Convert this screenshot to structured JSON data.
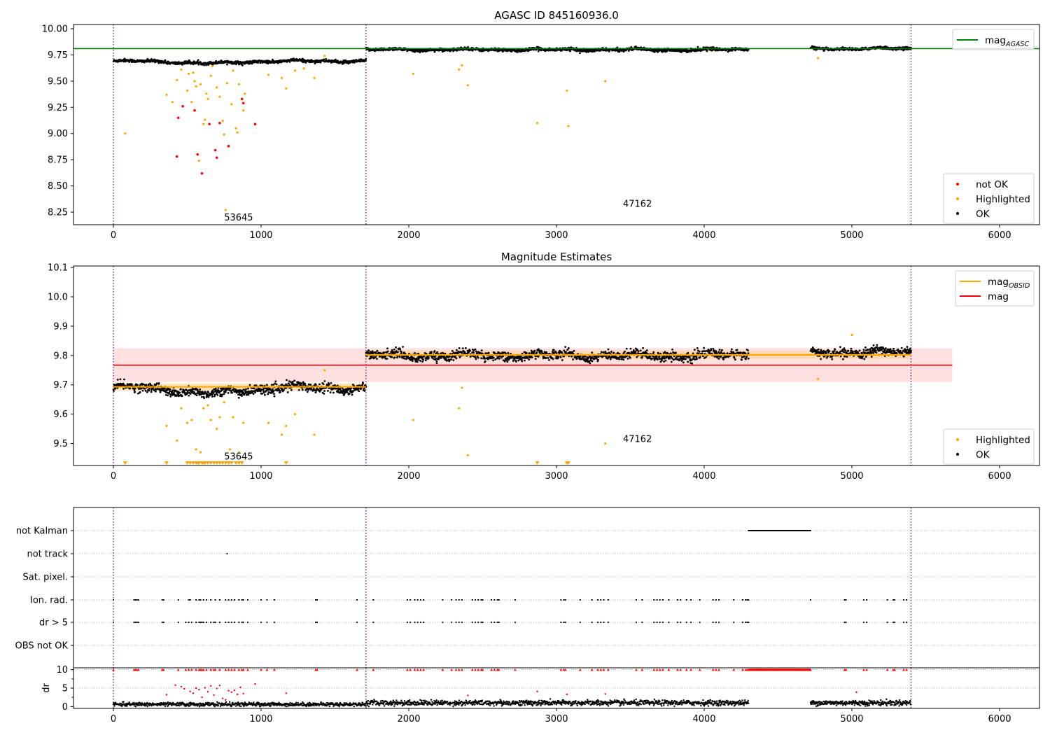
{
  "figure": {
    "title": "AGASC ID 845160936.0"
  },
  "chart_data": [
    {
      "id": "agasc",
      "type": "scatter",
      "title": "",
      "xlabel": "",
      "ylabel": "",
      "xlim": [
        -270,
        6270
      ],
      "ylim": [
        8.13,
        10.04
      ],
      "x_ticks": [
        0,
        1000,
        2000,
        3000,
        4000,
        5000,
        6000
      ],
      "y_ticks": [
        8.25,
        8.5,
        8.75,
        9.0,
        9.25,
        9.5,
        9.75,
        10.0
      ],
      "y_tick_labels": [
        "8.25",
        "8.50",
        "8.75",
        "9.00",
        "9.25",
        "9.50",
        "9.75",
        "10.00"
      ],
      "obsid_boundaries": [
        0,
        1710,
        5400
      ],
      "hlines": [
        {
          "name": "mag_AGASC",
          "y": 9.81,
          "color": "#008000",
          "x_range": [
            -270,
            6270
          ]
        }
      ],
      "annotations": [
        {
          "text": "53645",
          "x": 750,
          "y": 8.17
        },
        {
          "text": "47162",
          "x": 3450,
          "y": 8.3
        }
      ],
      "segments": [
        {
          "x": [
            0,
            1710
          ],
          "ok_mean": 9.69,
          "ok_noise": 0.012,
          "dip": {
            "center": 650,
            "width": 260,
            "depth": 0.02
          }
        },
        {
          "x": [
            1710,
            4300
          ],
          "ok_mean": 9.8,
          "ok_noise": 0.012
        },
        {
          "x": [
            4720,
            5400
          ],
          "ok_mean": 9.81,
          "ok_noise": 0.011
        }
      ],
      "not_ok": [
        [
          430,
          8.78
        ],
        [
          440,
          9.15
        ],
        [
          470,
          9.26
        ],
        [
          550,
          9.22
        ],
        [
          570,
          8.8
        ],
        [
          600,
          8.62
        ],
        [
          650,
          9.09
        ],
        [
          690,
          8.84
        ],
        [
          700,
          8.77
        ],
        [
          720,
          9.1
        ],
        [
          780,
          8.88
        ],
        [
          870,
          9.33
        ],
        [
          880,
          9.29
        ],
        [
          960,
          9.09
        ]
      ],
      "highlighted": [
        [
          80,
          9.0
        ],
        [
          360,
          9.37
        ],
        [
          400,
          9.3
        ],
        [
          430,
          9.51
        ],
        [
          460,
          9.61
        ],
        [
          500,
          9.41
        ],
        [
          510,
          9.57
        ],
        [
          530,
          9.3
        ],
        [
          540,
          9.58
        ],
        [
          550,
          9.5
        ],
        [
          560,
          9.45
        ],
        [
          580,
          8.74
        ],
        [
          590,
          9.47
        ],
        [
          610,
          9.09
        ],
        [
          620,
          9.13
        ],
        [
          630,
          9.38
        ],
        [
          640,
          9.33
        ],
        [
          660,
          9.55
        ],
        [
          670,
          9.64
        ],
        [
          700,
          9.44
        ],
        [
          720,
          9.35
        ],
        [
          740,
          9.12
        ],
        [
          750,
          8.99
        ],
        [
          760,
          8.27
        ],
        [
          770,
          9.48
        ],
        [
          800,
          9.28
        ],
        [
          810,
          9.6
        ],
        [
          830,
          9.05
        ],
        [
          840,
          9.01
        ],
        [
          850,
          9.47
        ],
        [
          880,
          9.22
        ],
        [
          890,
          9.38
        ],
        [
          1050,
          9.56
        ],
        [
          1140,
          9.53
        ],
        [
          1170,
          9.43
        ],
        [
          1230,
          9.6
        ],
        [
          1290,
          9.62
        ],
        [
          1360,
          9.53
        ],
        [
          1430,
          9.74
        ],
        [
          2030,
          9.57
        ],
        [
          2340,
          9.61
        ],
        [
          2360,
          9.65
        ],
        [
          2400,
          9.46
        ],
        [
          2870,
          9.1
        ],
        [
          3070,
          9.41
        ],
        [
          3080,
          9.07
        ],
        [
          3330,
          9.5
        ],
        [
          4770,
          9.72
        ]
      ],
      "legends": [
        {
          "placement": "upper-right",
          "entries": [
            {
              "label": "mag",
              "sub": "AGASC",
              "marker": "line",
              "color": "#008000"
            }
          ]
        },
        {
          "placement": "lower-right",
          "entries": [
            {
              "label": "not OK",
              "marker": "dot",
              "color": "#ff0000"
            },
            {
              "label": "Highlighted",
              "marker": "dot",
              "color": "#ffa500"
            },
            {
              "label": "OK",
              "marker": "dot",
              "color": "#000000"
            }
          ]
        }
      ]
    },
    {
      "id": "estimates",
      "type": "scatter",
      "title": "Magnitude Estimates",
      "xlabel": "",
      "ylabel": "",
      "xlim": [
        -270,
        6270
      ],
      "ylim": [
        9.425,
        10.105
      ],
      "x_ticks": [
        0,
        1000,
        2000,
        3000,
        4000,
        5000,
        6000
      ],
      "y_ticks": [
        9.5,
        9.6,
        9.7,
        9.8,
        9.9,
        10.0,
        10.1
      ],
      "y_tick_labels": [
        "9.5",
        "9.6",
        "9.7",
        "9.8",
        "9.9",
        "10.0",
        "10.1"
      ],
      "obsid_boundaries": [
        0,
        1710,
        5400
      ],
      "band": {
        "x": [
          0,
          5680
        ],
        "y": [
          9.71,
          9.825
        ],
        "color": "#ffcccc"
      },
      "mag_line": {
        "name": "mag",
        "y": 9.767,
        "x": [
          0,
          5680
        ],
        "color": "#ff0000"
      },
      "obsid_mags": [
        {
          "x": [
            0,
            1710
          ],
          "y": 9.693,
          "band": [
            9.68,
            9.705
          ]
        },
        {
          "x": [
            1710,
            5400
          ],
          "y": 9.802,
          "band": [
            9.788,
            9.816
          ]
        }
      ],
      "annotations": [
        {
          "text": "53645",
          "x": 750,
          "y": 9.445
        },
        {
          "text": "47162",
          "x": 3450,
          "y": 9.505
        }
      ],
      "segments": [
        {
          "x": [
            0,
            1710
          ],
          "ok_mean": 9.69,
          "ok_noise": 0.013,
          "dip": {
            "center": 650,
            "width": 260,
            "depth": 0.02
          }
        },
        {
          "x": [
            1710,
            4300
          ],
          "ok_mean": 9.8,
          "ok_noise": 0.013
        },
        {
          "x": [
            4720,
            5400
          ],
          "ok_mean": 9.81,
          "ok_noise": 0.012
        }
      ],
      "highlighted": [
        [
          360,
          9.56
        ],
        [
          430,
          9.51
        ],
        [
          460,
          9.62
        ],
        [
          500,
          9.57
        ],
        [
          530,
          9.58
        ],
        [
          560,
          9.48
        ],
        [
          590,
          9.47
        ],
        [
          610,
          9.62
        ],
        [
          640,
          9.63
        ],
        [
          660,
          9.58
        ],
        [
          700,
          9.55
        ],
        [
          720,
          9.59
        ],
        [
          750,
          9.64
        ],
        [
          790,
          9.48
        ],
        [
          810,
          9.59
        ],
        [
          850,
          9.47
        ],
        [
          880,
          9.57
        ],
        [
          1050,
          9.57
        ],
        [
          1140,
          9.53
        ],
        [
          1170,
          9.56
        ],
        [
          1230,
          9.6
        ],
        [
          1360,
          9.53
        ],
        [
          1430,
          9.75
        ],
        [
          2030,
          9.58
        ],
        [
          2340,
          9.62
        ],
        [
          2360,
          9.69
        ],
        [
          2400,
          9.46
        ],
        [
          3330,
          9.5
        ],
        [
          4770,
          9.72
        ],
        [
          5000,
          9.87
        ]
      ],
      "lower_limits": [
        80,
        360,
        500,
        520,
        540,
        560,
        570,
        580,
        600,
        610,
        620,
        640,
        660,
        680,
        700,
        720,
        740,
        760,
        780,
        800,
        830,
        850,
        870,
        1170,
        2870,
        3070,
        3080
      ],
      "legends": [
        {
          "placement": "upper-right",
          "entries": [
            {
              "label": "mag",
              "sub": "OBSID",
              "marker": "line",
              "color": "#ffa500"
            },
            {
              "label": "mag",
              "sub": "",
              "marker": "line",
              "color": "#ff0000"
            }
          ]
        },
        {
          "placement": "lower-right",
          "entries": [
            {
              "label": "Highlighted",
              "marker": "dot",
              "color": "#ffa500"
            },
            {
              "label": "OK",
              "marker": "dot",
              "color": "#000000"
            }
          ]
        }
      ]
    },
    {
      "id": "flags",
      "type": "scatter",
      "title": "",
      "xlabel": "",
      "ylabel": "",
      "xlim": [
        -270,
        6270
      ],
      "x_ticks": [
        0,
        1000,
        2000,
        3000,
        4000,
        5000,
        6000
      ],
      "obsid_boundaries": [
        0,
        1710,
        5400
      ],
      "rows": [
        {
          "label": "not Kalman",
          "ranges": [
            [
              4300,
              4720
            ]
          ]
        },
        {
          "label": "not track",
          "points": [
            770
          ]
        },
        {
          "label": "Sat. pixel.",
          "points": []
        },
        {
          "label": "Ion. rad.",
          "points": [
            0,
            140,
            150,
            160,
            170,
            330,
            340,
            440,
            510,
            520,
            560,
            580,
            590,
            610,
            630,
            660,
            690,
            720,
            760,
            780,
            800,
            820,
            850,
            870,
            880,
            910,
            1000,
            1040,
            1090,
            1370,
            1380,
            1650,
            1760,
            1990,
            2010,
            2040,
            2060,
            2080,
            2100,
            2230,
            2290,
            2320,
            2340,
            2360,
            2430,
            2450,
            2470,
            2490,
            2500,
            2560,
            2580,
            2600,
            2610,
            2720,
            3030,
            3050,
            3060,
            3160,
            3240,
            3280,
            3300,
            3320,
            3350,
            3540,
            3580,
            3660,
            3680,
            3700,
            3720,
            3760,
            3820,
            3840,
            3880,
            3910,
            3970,
            4060,
            4080,
            4100,
            4200,
            4260,
            4280,
            4290,
            4300,
            4720,
            4950,
            4960,
            5080,
            5100,
            5240,
            5280,
            5290,
            5350,
            5370
          ]
        },
        {
          "label": "dr > 5",
          "points": [
            0,
            140,
            150,
            160,
            170,
            330,
            340,
            440,
            490,
            510,
            530,
            560,
            580,
            590,
            600,
            610,
            630,
            660,
            680,
            690,
            720,
            760,
            780,
            800,
            820,
            850,
            870,
            880,
            910,
            1000,
            1040,
            1090,
            1370,
            1380,
            1650,
            1760,
            1990,
            2010,
            2040,
            2060,
            2080,
            2100,
            2230,
            2290,
            2320,
            2340,
            2360,
            2430,
            2450,
            2470,
            2490,
            2500,
            2560,
            2580,
            2600,
            2610,
            2720,
            3030,
            3050,
            3060,
            3160,
            3240,
            3280,
            3300,
            3320,
            3350,
            3540,
            3580,
            3660,
            3680,
            3700,
            3720,
            3760,
            3820,
            3840,
            3880,
            3910,
            3970,
            4060,
            4080,
            4100,
            4200,
            4260,
            4280,
            4290,
            4300,
            4950,
            4960,
            5080,
            5100,
            5240,
            5280,
            5290,
            5350,
            5370
          ]
        },
        {
          "label": "OBS not OK",
          "points": []
        }
      ]
    },
    {
      "id": "dr",
      "type": "scatter",
      "title": "",
      "xlabel": "",
      "ylabel": "dr",
      "xlim": [
        -270,
        6270
      ],
      "ylim": [
        -0.5,
        10.5
      ],
      "x_ticks": [
        0,
        1000,
        2000,
        3000,
        4000,
        5000,
        6000
      ],
      "y_ticks": [
        0,
        5,
        10
      ],
      "y_tick_labels": [
        "0",
        "5",
        "10"
      ],
      "obsid_boundaries": [
        0,
        1710,
        5400
      ],
      "segments": [
        {
          "x": [
            0,
            1710
          ],
          "ok_mean": 0.6,
          "ok_noise": 0.25
        },
        {
          "x": [
            1710,
            4300
          ],
          "ok_mean": 1.0,
          "ok_noise": 0.35
        },
        {
          "x": [
            4720,
            5400
          ],
          "ok_mean": 1.0,
          "ok_noise": 0.35
        }
      ],
      "clipped_ranges": [
        [
          4300,
          4720
        ]
      ],
      "high_points": [
        [
          360,
          3.2
        ],
        [
          420,
          5.8
        ],
        [
          460,
          5.4
        ],
        [
          480,
          4.8
        ],
        [
          520,
          4.1
        ],
        [
          540,
          3.6
        ],
        [
          560,
          5.0
        ],
        [
          580,
          4.6
        ],
        [
          600,
          2.5
        ],
        [
          620,
          5.1
        ],
        [
          640,
          4.0
        ],
        [
          660,
          5.6
        ],
        [
          680,
          3.1
        ],
        [
          700,
          4.9
        ],
        [
          720,
          5.7
        ],
        [
          740,
          2.2
        ],
        [
          760,
          1.8
        ],
        [
          780,
          4.3
        ],
        [
          800,
          3.9
        ],
        [
          820,
          4.4
        ],
        [
          840,
          3.3
        ],
        [
          860,
          5.2
        ],
        [
          880,
          3.5
        ],
        [
          960,
          6.1
        ],
        [
          1170,
          3.6
        ],
        [
          2400,
          3.0
        ],
        [
          2870,
          4.1
        ],
        [
          3070,
          3.3
        ],
        [
          3330,
          3.4
        ],
        [
          5030,
          3.9
        ]
      ]
    }
  ]
}
